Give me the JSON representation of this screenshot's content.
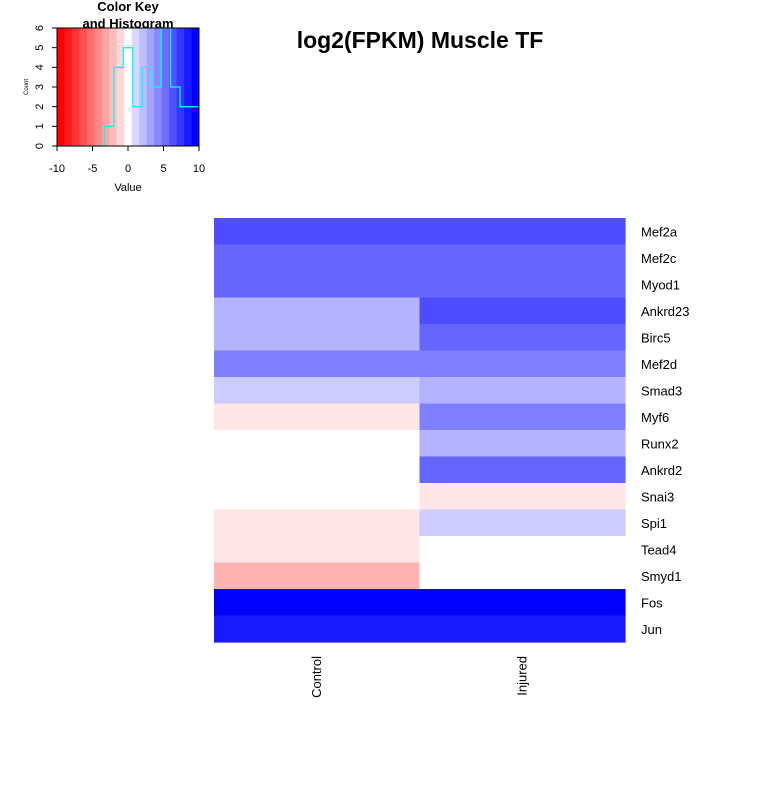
{
  "chart_data": [
    {
      "type": "heatmap",
      "title": "log2(FPKM) Muscle TF",
      "columns": [
        "Control",
        "Injured"
      ],
      "rows": [
        "Mef2a",
        "Mef2c",
        "Myod1",
        "Ankrd23",
        "Birc5",
        "Mef2d",
        "Smad3",
        "Myf6",
        "Runx2",
        "Ankrd2",
        "Snai3",
        "Spi1",
        "Tead4",
        "Smyd1",
        "Fos",
        "Jun"
      ],
      "values": [
        [
          7,
          7
        ],
        [
          6,
          6
        ],
        [
          6,
          6
        ],
        [
          3,
          7
        ],
        [
          3,
          6
        ],
        [
          5,
          5
        ],
        [
          2,
          3
        ],
        [
          -1,
          5
        ],
        [
          0,
          3
        ],
        [
          0,
          6
        ],
        [
          0,
          -1
        ],
        [
          -1,
          2
        ],
        [
          -1,
          0
        ],
        [
          -3,
          0
        ],
        [
          10,
          10
        ],
        [
          9,
          9
        ]
      ],
      "color_range": [
        -10,
        10
      ],
      "colors": {
        "low": "#ff0000",
        "mid": "#ffffff",
        "high": "#0000ff"
      }
    },
    {
      "type": "bar",
      "title": "Color Key\nand Histogram",
      "xlabel": "Value",
      "ylabel": "Count",
      "xlim": [
        -10,
        10
      ],
      "ylim": [
        0,
        6
      ],
      "x_ticks": [
        -10,
        -5,
        0,
        5,
        10
      ],
      "y_ticks": [
        0,
        1,
        2,
        3,
        4,
        5,
        6
      ],
      "bin_edges": [
        -10,
        -8.67,
        -7.33,
        -6,
        -4.67,
        -3.33,
        -2,
        -0.67,
        0.67,
        2,
        3.33,
        4.67,
        6,
        7.33,
        8.67,
        10
      ],
      "hist_counts": [
        0,
        0,
        0,
        0,
        0,
        1,
        4,
        5,
        2,
        4,
        3,
        6,
        3,
        2,
        2
      ],
      "histogram_color": "#00ffff",
      "key_colors": [
        "#ff0000",
        "#ff1b1b",
        "#ff3636",
        "#ff5151",
        "#ff6d6d",
        "#ff8888",
        "#ffa3a3",
        "#ffbebe",
        "#ffd9d9",
        "#ffffff",
        "#d9d9ff",
        "#bebeff",
        "#a3a3ff",
        "#8888ff",
        "#6d6dff",
        "#5151ff",
        "#3636ff",
        "#1b1bff",
        "#0000ff"
      ]
    }
  ]
}
